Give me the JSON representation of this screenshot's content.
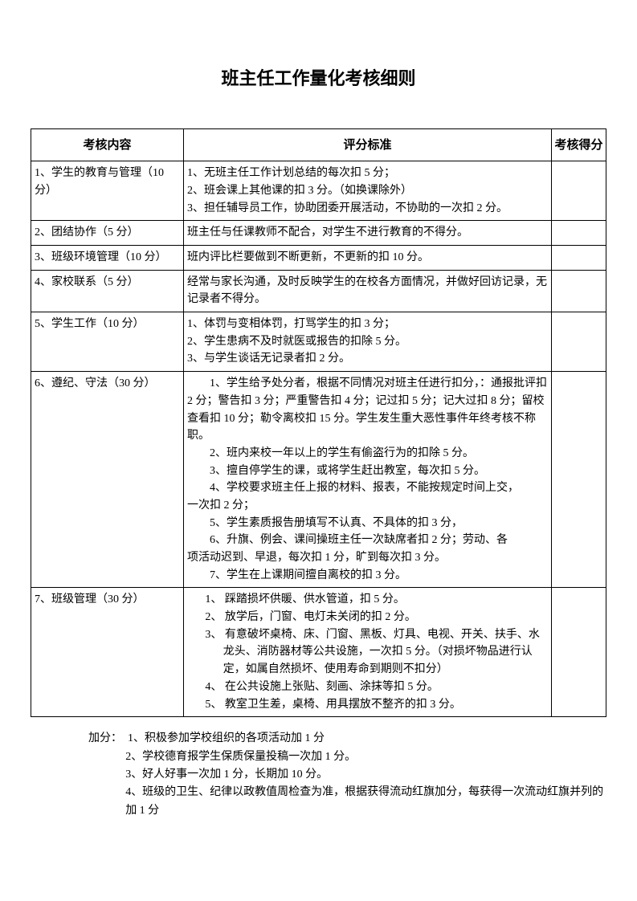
{
  "title": "班主任工作量化考核细则",
  "table": {
    "headers": {
      "content": "考核内容",
      "criteria": "评分标准",
      "score": "考核得分"
    },
    "rows": [
      {
        "content": "1、学生的教育与管理（10 分）",
        "criteria_lines": [
          "1、无班主任工作计划总结的每次扣 5 分；",
          "2、班会课上其他课的扣 3 分。（如换课除外）",
          "3、担任辅导员工作，协助团委开展活动，不协助的一次扣 2 分。"
        ]
      },
      {
        "content": "2、团结协作（5 分）",
        "criteria_lines": [
          "班主任与任课教师不配合，对学生不进行教育的不得分。"
        ]
      },
      {
        "content": "3、班级环境管理（10 分）",
        "criteria_lines": [
          "班内评比栏要做到不断更新，不更新的扣 10 分。"
        ]
      },
      {
        "content": "4、家校联系（5 分）",
        "criteria_lines": [
          "经常与家长沟通，及时反映学生的在校各方面情况，并做好回访记录，无记录者不得分。"
        ]
      },
      {
        "content": "5、学生工作（10 分）",
        "criteria_lines": [
          "1、体罚与变相体罚，打骂学生的扣 3 分；",
          "2、学生患病不及时就医或报告的扣除 5 分。",
          "3、与学生谈话无记录者扣 2 分。"
        ]
      },
      {
        "content": "6、遵纪、守法（30 分）",
        "criteria_html": "row6"
      },
      {
        "content": "7、班级管理（30 分）",
        "criteria_html": "row7"
      }
    ],
    "row6": {
      "p1": "　　1、学生给予处分者，根据不同情况对班主任进行扣分，：通报批评扣 2 分；警告扣 3 分；严重警告扣 4 分；记过扣 5 分；记大过扣 8 分；留校查看扣 10 分；勒令离校扣 15 分。学生发生重大恶性事件年终考核不称职。",
      "p2": "　　2、班内来校一年以上的学生有偷盗行为的扣除 5 分。",
      "p3": "　　3、擅自停学生的课，或将学生赶出教室，每次扣 5 分。",
      "p4a": "　　4、学校要求班主任上报的材料、报表，不能按规定时间上交，",
      "p4b": "一次扣 2 分；",
      "p5": "　　5、学生素质报告册填写不认真、不具体的扣 3 分，",
      "p6a": "　　6、升旗、例会、课间操班主任一次缺席者扣 2 分；劳动、各",
      "p6b": "项活动迟到、早退，每次扣 1 分，旷到每次扣 3 分。",
      "p7": "　　7、学生在上课期间擅自离校的扣 3 分。"
    },
    "row7": {
      "i1": "1、 踩踏损坏供暖、供水管道，扣 5 分。",
      "i2": "2、 放学后，门窗、电灯未关闭的扣 2 分。",
      "i3": "3、 有意破坏桌椅、床、门窗、黑板、灯具、电视、开关、扶手、水龙头、消防器材等公共设施，一次扣 5 分。（对损坏物品进行认定，如属自然损坏、使用寿命到期则不扣分）",
      "i4": "4、 在公共设施上张贴、刻画、涂抹等扣 5 分。",
      "i5": "5、 教室卫生差，桌椅、用具摆放不整齐的扣 3 分。"
    }
  },
  "bonus": {
    "label": "加分：　",
    "items": [
      "1、积极参加学校组织的各项活动加 1 分",
      "2、学校德育报学生保质保量投稿一次加 1 分。",
      "3、好人好事一次加 1 分，长期加 10 分。",
      "4、班级的卫生、纪律以政教值周检查为准，根据获得流动红旗加分，每获得一次流动红旗并列的加 1 分"
    ]
  }
}
